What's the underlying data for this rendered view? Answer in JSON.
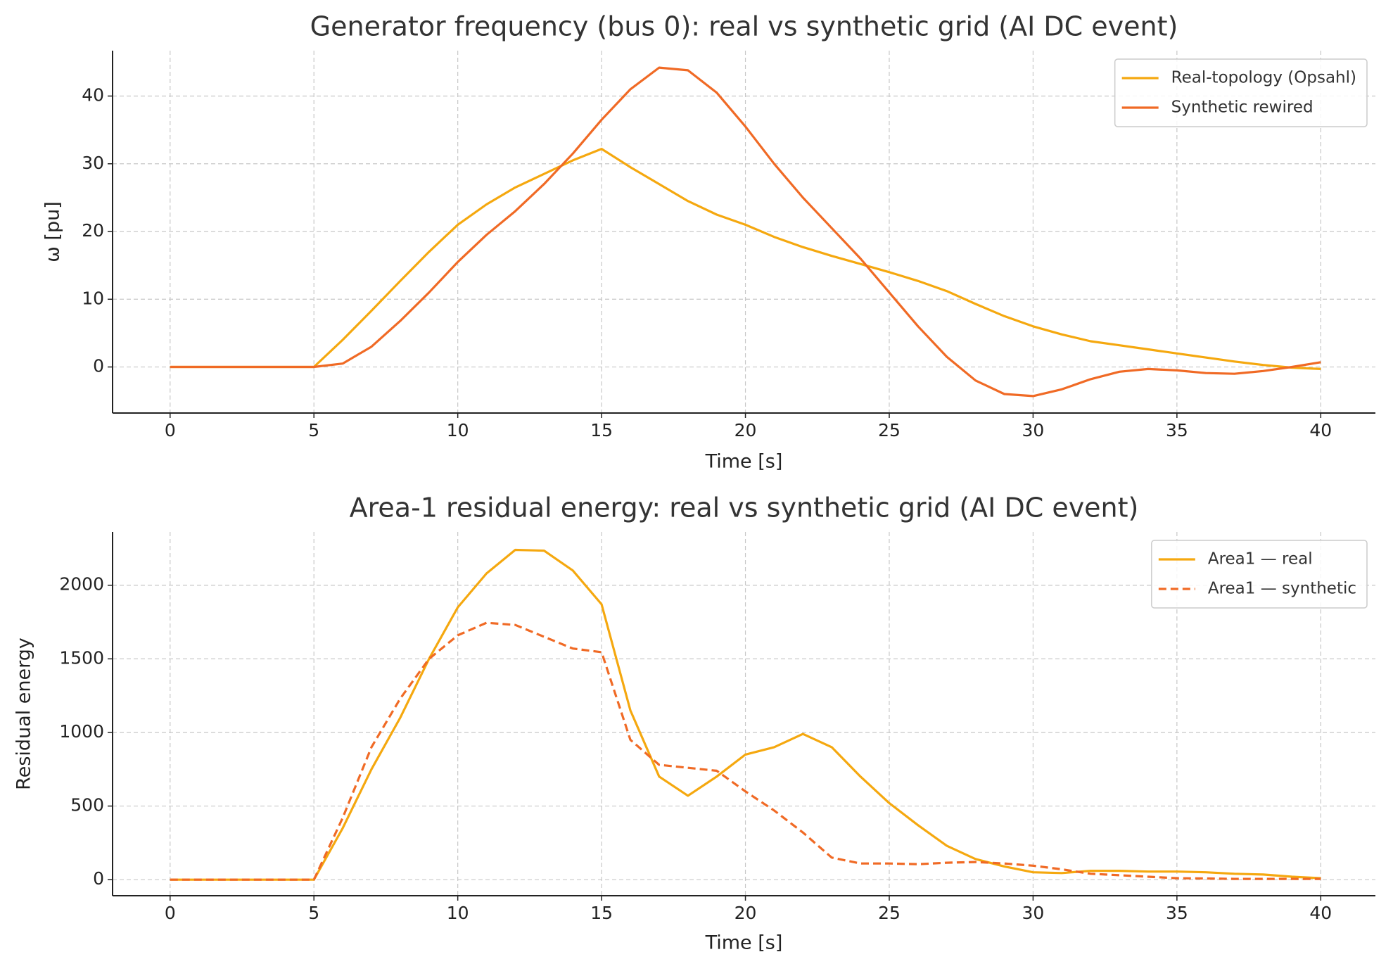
{
  "chart_data": [
    {
      "type": "line",
      "title": "Generator frequency (bus 0): real vs synthetic grid (AI DC event)",
      "x_label": "Time [s]",
      "y_label": "ω [pu]",
      "x": [
        0,
        1,
        2,
        3,
        4,
        5,
        6,
        7,
        8,
        9,
        10,
        11,
        12,
        13,
        14,
        15,
        16,
        17,
        18,
        19,
        20,
        21,
        22,
        23,
        24,
        25,
        26,
        27,
        28,
        29,
        30,
        31,
        32,
        33,
        34,
        35,
        36,
        37,
        38,
        39,
        40
      ],
      "series": [
        {
          "name": "Real-topology (Opsahl)",
          "color": "#f5a80f",
          "linestyle": "solid",
          "values": [
            0,
            0,
            0,
            0,
            0,
            0,
            4,
            8.3,
            12.7,
            17,
            21,
            24,
            26.5,
            28.5,
            30.5,
            32.2,
            29.5,
            27,
            24.5,
            22.5,
            21,
            19.2,
            17.7,
            16.4,
            15.2,
            14,
            12.7,
            11.2,
            9.3,
            7.5,
            6,
            4.8,
            3.8,
            3.2,
            2.6,
            2,
            1.4,
            0.8,
            0.3,
            -0.1,
            -0.3
          ]
        },
        {
          "name": "Synthetic rewired",
          "color": "#f06a25",
          "linestyle": "solid",
          "values": [
            0,
            0,
            0,
            0,
            0,
            0,
            0.5,
            3,
            6.8,
            11,
            15.5,
            19.5,
            23,
            27,
            31.5,
            36.5,
            41,
            44.2,
            43.8,
            40.5,
            35.5,
            30,
            25,
            20.5,
            16,
            11,
            6,
            1.5,
            -2,
            -4,
            -4.3,
            -3.3,
            -1.8,
            -0.7,
            -0.3,
            -0.5,
            -0.9,
            -1,
            -0.6,
            0,
            0.7
          ]
        }
      ],
      "xlim": [
        -2,
        41.9
      ],
      "ylim": [
        -6.8,
        46.7
      ],
      "xticks": [
        0,
        5,
        10,
        15,
        20,
        25,
        30,
        35,
        40
      ],
      "yticks": [
        0,
        10,
        20,
        30,
        40
      ],
      "grid": true,
      "legend": "upper right"
    },
    {
      "type": "line",
      "title": "Area-1 residual energy: real vs synthetic grid (AI DC event)",
      "x_label": "Time [s]",
      "y_label": "Residual energy",
      "x": [
        0,
        1,
        2,
        3,
        4,
        5,
        6,
        7,
        8,
        9,
        10,
        11,
        12,
        13,
        14,
        15,
        16,
        17,
        18,
        19,
        20,
        21,
        22,
        23,
        24,
        25,
        26,
        27,
        28,
        29,
        30,
        31,
        32,
        33,
        34,
        35,
        36,
        37,
        38,
        39,
        40
      ],
      "series": [
        {
          "name": "Area1 — real",
          "color": "#f5a80f",
          "linestyle": "solid",
          "values": [
            0,
            0,
            0,
            0,
            0,
            0,
            350,
            750,
            1100,
            1500,
            1850,
            2080,
            2240,
            2235,
            2100,
            1870,
            1150,
            700,
            570,
            700,
            850,
            900,
            990,
            900,
            700,
            520,
            370,
            230,
            140,
            90,
            50,
            45,
            60,
            60,
            55,
            55,
            50,
            40,
            35,
            20,
            10
          ]
        },
        {
          "name": "Area1 — synthetic",
          "color": "#f06a25",
          "linestyle": "dashed",
          "values": [
            0,
            0,
            0,
            0,
            0,
            0,
            420,
            900,
            1230,
            1500,
            1660,
            1745,
            1730,
            1650,
            1570,
            1545,
            950,
            780,
            760,
            740,
            600,
            470,
            320,
            150,
            110,
            110,
            105,
            115,
            120,
            110,
            95,
            70,
            40,
            30,
            20,
            10,
            8,
            5,
            5,
            5,
            5
          ]
        }
      ],
      "xlim": [
        -2,
        41.9
      ],
      "ylim": [
        -109,
        2362
      ],
      "xticks": [
        0,
        5,
        10,
        15,
        20,
        25,
        30,
        35,
        40
      ],
      "yticks": [
        0,
        500,
        1000,
        1500,
        2000
      ],
      "grid": true,
      "legend": "upper right"
    }
  ]
}
